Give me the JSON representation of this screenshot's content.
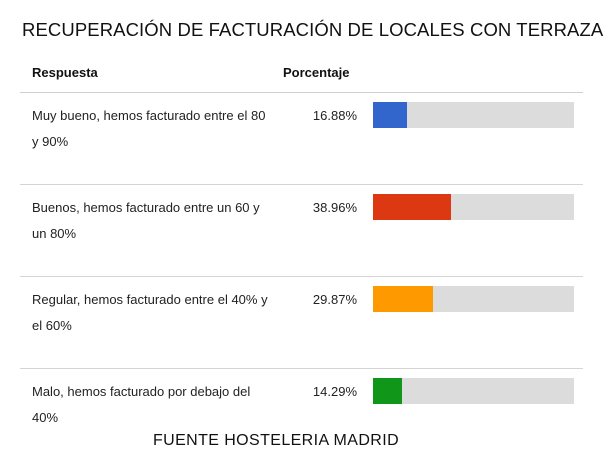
{
  "title": "RECUPERACIÓN DE FACTURACIÓN DE LOCALES CON TERRAZA",
  "columns": {
    "answer": "Respuesta",
    "percentage": "Porcentaje"
  },
  "rows": [
    {
      "label": "Muy bueno, hemos facturado entre el 80 y 90%",
      "pct_text": "16.88%",
      "value": 16.88,
      "color": "#3366cc"
    },
    {
      "label": "Buenos, hemos facturado entre un 60 y un 80%",
      "pct_text": "38.96%",
      "value": 38.96,
      "color": "#dc3912"
    },
    {
      "label": "Regular, hemos facturado entre el 40% y el 60%",
      "pct_text": "29.87%",
      "value": 29.87,
      "color": "#ff9900"
    },
    {
      "label": "Malo, hemos facturado por debajo del 40%",
      "pct_text": "14.29%",
      "value": 14.29,
      "color": "#109618"
    }
  ],
  "source": "FUENTE HOSTELERIA MADRID",
  "chart_data": {
    "type": "bar",
    "title": "RECUPERACIÓN DE FACTURACIÓN DE LOCALES CON TERRAZA",
    "categories": [
      "Muy bueno, hemos facturado entre el 80 y 90%",
      "Buenos, hemos facturado entre un 60 y un 80%",
      "Regular, hemos facturado entre el 40% y el 60%",
      "Malo, hemos facturado por debajo del 40%"
    ],
    "values": [
      16.88,
      38.96,
      29.87,
      14.29
    ],
    "ylim": [
      0,
      100
    ],
    "colors": [
      "#3366cc",
      "#dc3912",
      "#ff9900",
      "#109618"
    ],
    "track_color": "#dcdcdc"
  }
}
